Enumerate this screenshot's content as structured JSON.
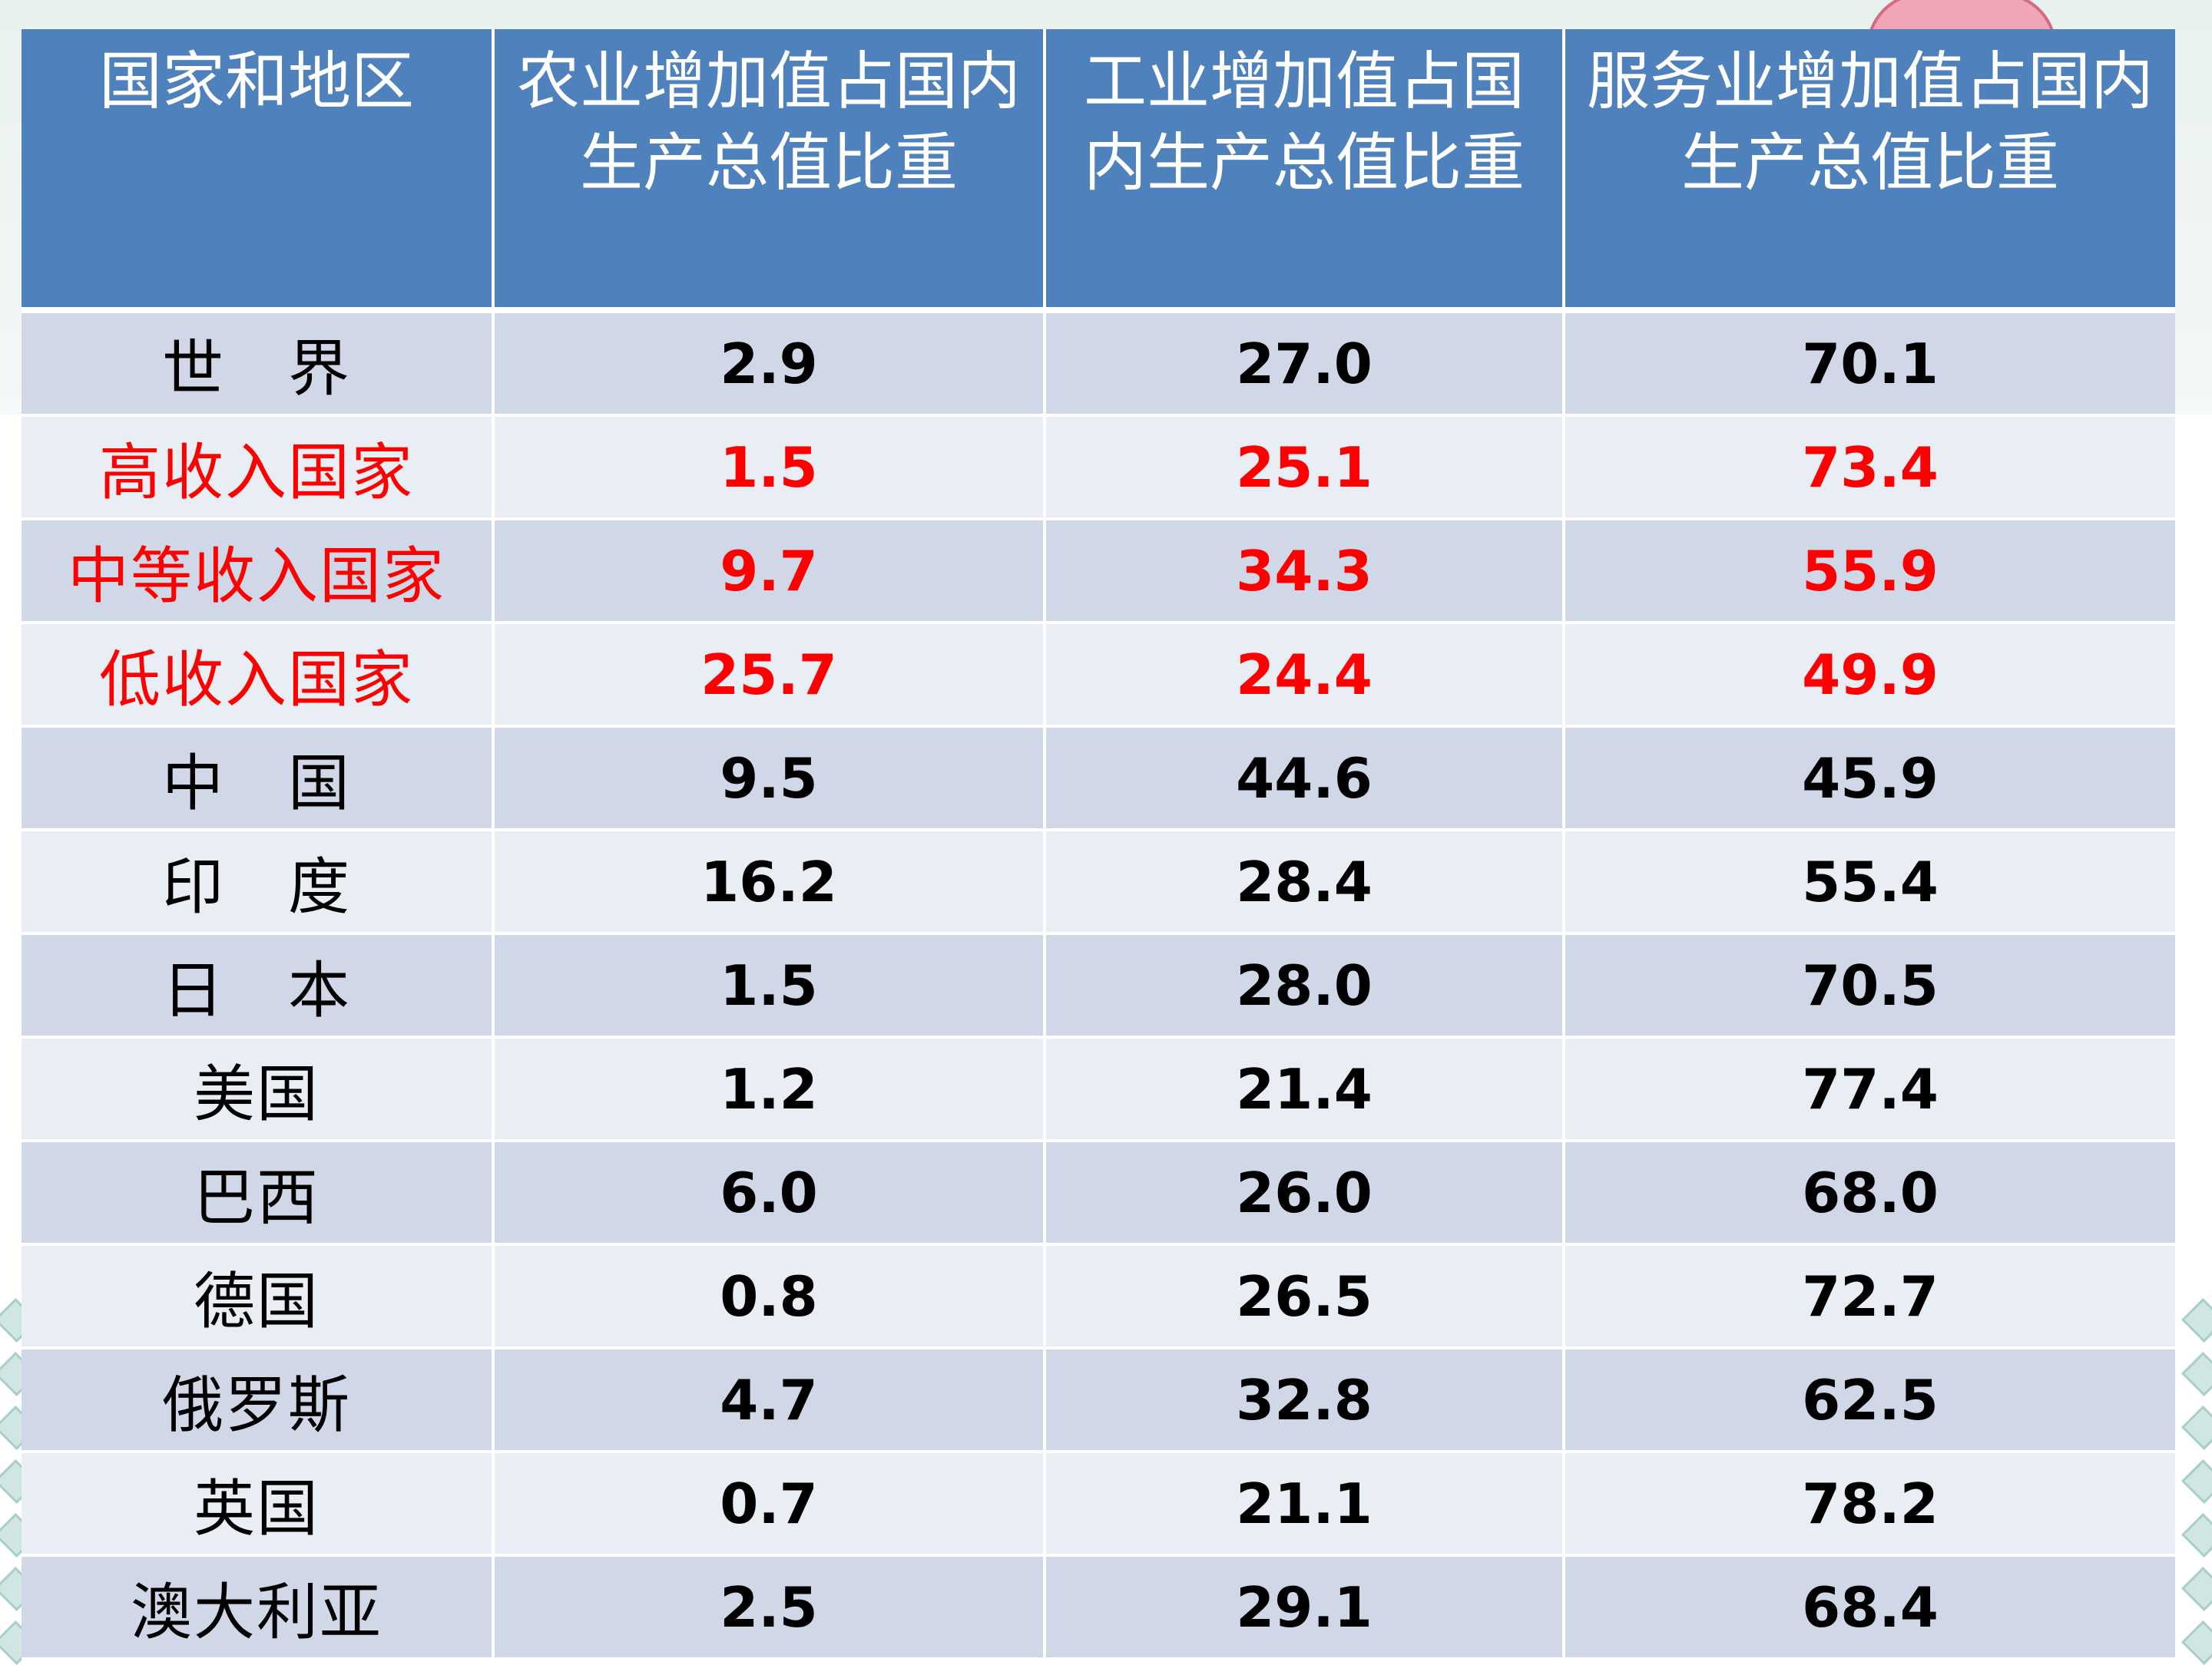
{
  "table": {
    "headers": [
      "国家和地区",
      "农业增加值占国内生产总值比重",
      "工业增加值占国内生产总值比重",
      "服务业增加值占国内生产总值比重"
    ],
    "rows": [
      {
        "name": "世　界",
        "agriculture": "2.9",
        "industry": "27.0",
        "services": "70.1",
        "highlight": false
      },
      {
        "name": "高收入国家",
        "agriculture": "1.5",
        "industry": "25.1",
        "services": "73.4",
        "highlight": true
      },
      {
        "name": "中等收入国家",
        "agriculture": "9.7",
        "industry": "34.3",
        "services": "55.9",
        "highlight": true
      },
      {
        "name": "低收入国家",
        "agriculture": "25.7",
        "industry": "24.4",
        "services": "49.9",
        "highlight": true
      },
      {
        "name": "中　国",
        "agriculture": "9.5",
        "industry": "44.6",
        "services": "45.9",
        "highlight": false
      },
      {
        "name": "印　度",
        "agriculture": "16.2",
        "industry": "28.4",
        "services": "55.4",
        "highlight": false
      },
      {
        "name": "日　本",
        "agriculture": "1.5",
        "industry": "28.0",
        "services": "70.5",
        "highlight": false
      },
      {
        "name": "美国",
        "agriculture": "1.2",
        "industry": "21.4",
        "services": "77.4",
        "highlight": false
      },
      {
        "name": "巴西",
        "agriculture": "6.0",
        "industry": "26.0",
        "services": "68.0",
        "highlight": false
      },
      {
        "name": "德国",
        "agriculture": "0.8",
        "industry": "26.5",
        "services": "72.7",
        "highlight": false
      },
      {
        "name": "俄罗斯",
        "agriculture": "4.7",
        "industry": "32.8",
        "services": "62.5",
        "highlight": false
      },
      {
        "name": "英国",
        "agriculture": "0.7",
        "industry": "21.1",
        "services": "78.2",
        "highlight": false
      },
      {
        "name": "澳大利亚",
        "agriculture": "2.5",
        "industry": "29.1",
        "services": "68.4",
        "highlight": false
      }
    ]
  },
  "colors": {
    "header_bg": "#4f81bd",
    "header_text": "#ffffff",
    "row_odd": "#d0d8e8",
    "row_even": "#e9edf4",
    "highlight_text": "#ff0000",
    "normal_text": "#000000"
  }
}
